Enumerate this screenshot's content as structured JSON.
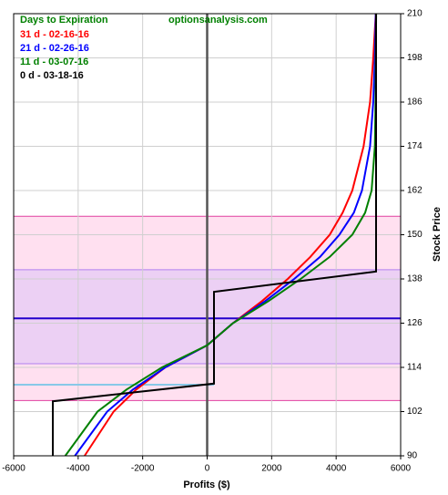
{
  "chart_data": {
    "type": "line",
    "subtitle": "optionsanalysis.com",
    "legend_title": "Days to Expiration",
    "x_label": "Profits ($)",
    "y_label": "Stock Price",
    "xlim": [
      -6000,
      6000
    ],
    "xticks": [
      -6000,
      -4000,
      -2000,
      0,
      2000,
      4000,
      6000
    ],
    "ylim": [
      90,
      210
    ],
    "yticks": [
      90,
      102,
      114,
      126,
      138,
      150,
      162,
      174,
      186,
      198,
      210
    ],
    "grid": true,
    "legend": "upper left",
    "y_axis_side": "right",
    "bands": [
      {
        "from": 105,
        "to": 155,
        "color": "#ffe0f0",
        "edge": "#e040a0"
      },
      {
        "from": 115,
        "to": 140.5,
        "color": "#ecd0f4",
        "edge": "#b080f0"
      }
    ],
    "hlines": [
      {
        "value": 127.3,
        "color": "#2200cc",
        "xrange": [
          -6000,
          6000
        ]
      },
      {
        "value": 109.3,
        "color": "#88c8e8",
        "xrange": [
          -6000,
          212
        ]
      }
    ],
    "vline": {
      "value": 0,
      "color": "#555555"
    },
    "series": [
      {
        "name": "31 d - 02-16-16",
        "color": "#ff0000",
        "x": [
          -3800,
          -2900,
          -2200,
          -1300,
          0,
          800,
          1700,
          2500,
          3200,
          3800,
          4200,
          4500,
          4850,
          5050,
          5150,
          5230
        ],
        "values": [
          90,
          102,
          108,
          114,
          120,
          126,
          132,
          138,
          144,
          150,
          156,
          162,
          174,
          186,
          198,
          210
        ]
      },
      {
        "name": "21 d - 02-26-16",
        "color": "#0000ff",
        "x": [
          -4100,
          -3100,
          -2300,
          -1300,
          0,
          800,
          1800,
          2700,
          3500,
          4100,
          4550,
          4800,
          5050,
          5150,
          5200,
          5230
        ],
        "values": [
          90,
          102,
          108,
          114,
          120,
          126,
          132,
          138,
          144,
          150,
          156,
          162,
          174,
          186,
          198,
          210
        ]
      },
      {
        "name": "11 d - 03-07-16",
        "color": "#008000",
        "x": [
          -4400,
          -3400,
          -2500,
          -1400,
          0,
          800,
          1900,
          2900,
          3800,
          4500,
          4900,
          5100,
          5200,
          5220,
          5230,
          5240
        ],
        "values": [
          90,
          102,
          108,
          114,
          120,
          126,
          132,
          138,
          144,
          150,
          156,
          162,
          174,
          186,
          198,
          210
        ]
      },
      {
        "name": "0 d - 03-18-16",
        "color": "#000000",
        "x": [
          -4786,
          -4786,
          212,
          212,
          5238,
          5238
        ],
        "values": [
          90,
          104.8,
          109.6,
          134.5,
          140,
          210
        ]
      }
    ]
  }
}
